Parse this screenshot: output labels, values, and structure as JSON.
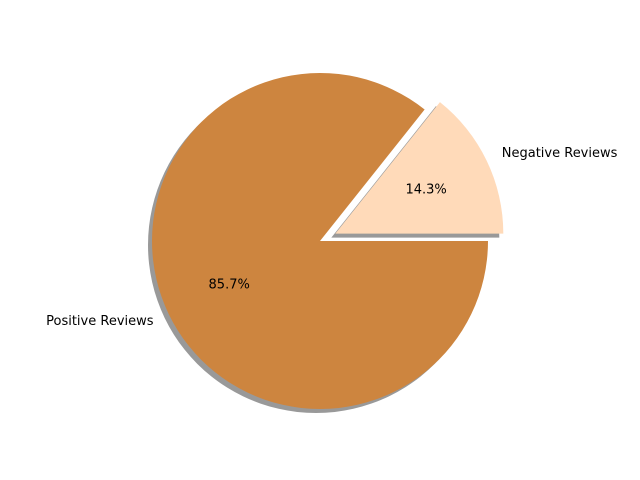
{
  "chart_data": {
    "type": "pie",
    "title": "",
    "categories": [
      "Negative Reviews",
      "Positive Reviews"
    ],
    "values": [
      14.3,
      85.7
    ],
    "percent_labels": [
      "14.3%",
      "85.7%"
    ],
    "colors": [
      "#FFDAB9",
      "#CD853F"
    ],
    "explode": [
      true,
      false
    ],
    "shadow": true,
    "start_angle_deg": 0,
    "legend": "none"
  }
}
